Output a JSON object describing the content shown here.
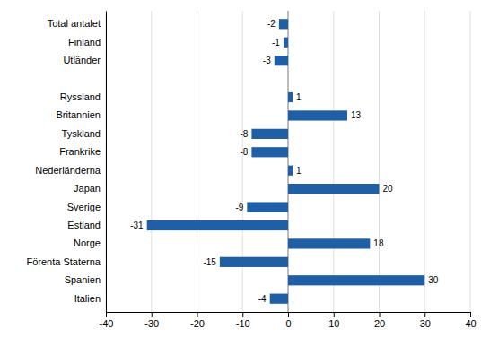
{
  "chart_data": {
    "type": "bar",
    "orientation": "horizontal",
    "categories": [
      "Italien",
      "Spanien",
      "Förenta Staterna",
      "Norge",
      "Estland",
      "Sverige",
      "Japan",
      "Nederländerna",
      "Frankrike",
      "Tyskland",
      "Britannien",
      "Ryssland",
      null,
      "Utländer",
      "Finland",
      "Total antalet"
    ],
    "values": [
      -4,
      30,
      -15,
      18,
      -31,
      -9,
      20,
      1,
      -8,
      -8,
      13,
      1,
      0,
      -3,
      -1,
      -2
    ],
    "color": "#1F5FA6",
    "xlim": [
      -40,
      40
    ],
    "xticks": [
      -40,
      -30,
      -20,
      -10,
      0,
      10,
      20,
      30,
      40
    ],
    "grid": true,
    "data_labels": true
  }
}
